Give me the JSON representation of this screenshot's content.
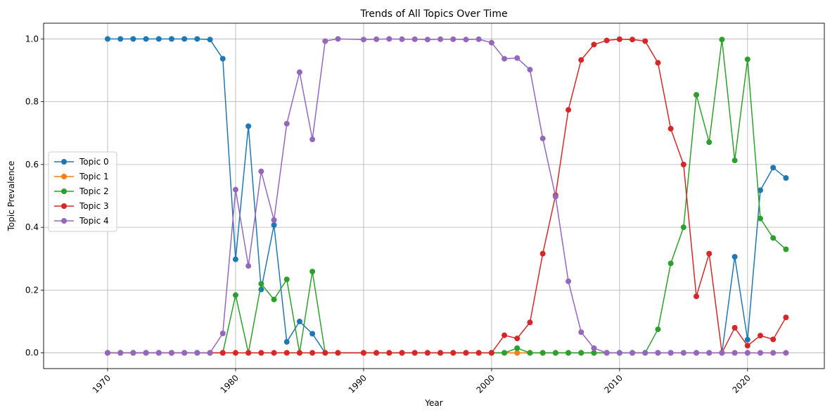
{
  "chart_data": {
    "type": "line",
    "title": "Trends of All Topics Over Time",
    "xlabel": "Year",
    "ylabel": "Topic Prevalence",
    "xlim": [
      1965,
      2026
    ],
    "ylim": [
      -0.05,
      1.05
    ],
    "xticks": [
      1970,
      1980,
      1990,
      2000,
      2010,
      2020
    ],
    "yticks": [
      "0.0",
      "0.2",
      "0.4",
      "0.6",
      "0.8",
      "1.0"
    ],
    "xtick_rotation": 45,
    "grid": true,
    "legend_position": "center-left",
    "marker": "circle",
    "x": [
      1970,
      1971,
      1972,
      1973,
      1974,
      1975,
      1976,
      1977,
      1978,
      1979,
      1980,
      1981,
      1982,
      1983,
      1984,
      1985,
      1986,
      1987,
      1988,
      1990,
      1991,
      1992,
      1993,
      1994,
      1995,
      1996,
      1997,
      1998,
      1999,
      2000,
      2001,
      2002,
      2003,
      2004,
      2005,
      2006,
      2007,
      2008,
      2009,
      2010,
      2011,
      2012,
      2013,
      2014,
      2015,
      2016,
      2017,
      2018,
      2019,
      2020,
      2021,
      2022,
      2023
    ],
    "series": [
      {
        "name": "Topic 0",
        "color": "#1f77b4",
        "values": [
          1,
          1,
          1,
          1,
          1,
          1,
          1,
          1,
          0.998,
          0.937,
          0.298,
          0.722,
          0.202,
          0.407,
          0.035,
          0.1,
          0.061,
          0,
          0,
          0,
          0,
          0,
          0,
          0,
          0,
          0,
          0,
          0,
          0,
          0,
          0,
          0,
          0,
          0,
          0,
          0,
          0,
          0,
          0,
          0,
          0,
          0,
          0,
          0,
          0,
          0,
          0,
          0,
          0.306,
          0.042,
          0.518,
          0.59,
          0.557
        ]
      },
      {
        "name": "Topic 1",
        "color": "#ff7f0e",
        "values": [
          0,
          0,
          0,
          0,
          0,
          0,
          0,
          0,
          0,
          0,
          0,
          0,
          0,
          0,
          0,
          0,
          0,
          0,
          0,
          0,
          0,
          0,
          0,
          0,
          0,
          0,
          0,
          0,
          0,
          0,
          0,
          0,
          0,
          0,
          0,
          0,
          0,
          0,
          0,
          0,
          0,
          0,
          0,
          0,
          0,
          0,
          0,
          0,
          0,
          0,
          0,
          0,
          0
        ]
      },
      {
        "name": "Topic 2",
        "color": "#2ca02c",
        "values": [
          0,
          0,
          0,
          0,
          0,
          0,
          0,
          0,
          0,
          0,
          0.184,
          0,
          0.22,
          0.17,
          0.234,
          0,
          0.259,
          0,
          0,
          0,
          0,
          0,
          0,
          0,
          0,
          0,
          0,
          0,
          0,
          0,
          0,
          0.015,
          0,
          0,
          0,
          0,
          0,
          0,
          0,
          0,
          0,
          0,
          0.075,
          0.285,
          0.4,
          0.822,
          0.671,
          0.998,
          0.613,
          0.935,
          0.428,
          0.366,
          0.33
        ]
      },
      {
        "name": "Topic 3",
        "color": "#d62728",
        "values": [
          0,
          0,
          0,
          0,
          0,
          0,
          0,
          0,
          0,
          0,
          0,
          0,
          0,
          0,
          0,
          0,
          0,
          0,
          0,
          0,
          0,
          0,
          0,
          0,
          0,
          0,
          0,
          0,
          0,
          0,
          0.056,
          0.046,
          0.097,
          0.316,
          0.502,
          0.774,
          0.933,
          0.982,
          0.995,
          0.999,
          0.998,
          0.993,
          0.924,
          0.714,
          0.6,
          0.18,
          0.316,
          0,
          0.08,
          0.023,
          0.055,
          0.043,
          0.113
        ]
      },
      {
        "name": "Topic 4",
        "color": "#9467bd",
        "values": [
          0,
          0,
          0,
          0,
          0,
          0,
          0,
          0,
          0,
          0.062,
          0.52,
          0.277,
          0.578,
          0.423,
          0.73,
          0.894,
          0.68,
          0.993,
          1,
          0.998,
          0.999,
          1,
          0.999,
          0.999,
          0.998,
          0.999,
          0.999,
          0.998,
          0.999,
          0.988,
          0.937,
          0.939,
          0.902,
          0.683,
          0.498,
          0.228,
          0.066,
          0.015,
          0,
          0,
          0,
          0,
          0,
          0,
          0,
          0,
          0,
          0,
          0,
          0,
          0,
          0,
          0
        ]
      }
    ]
  }
}
